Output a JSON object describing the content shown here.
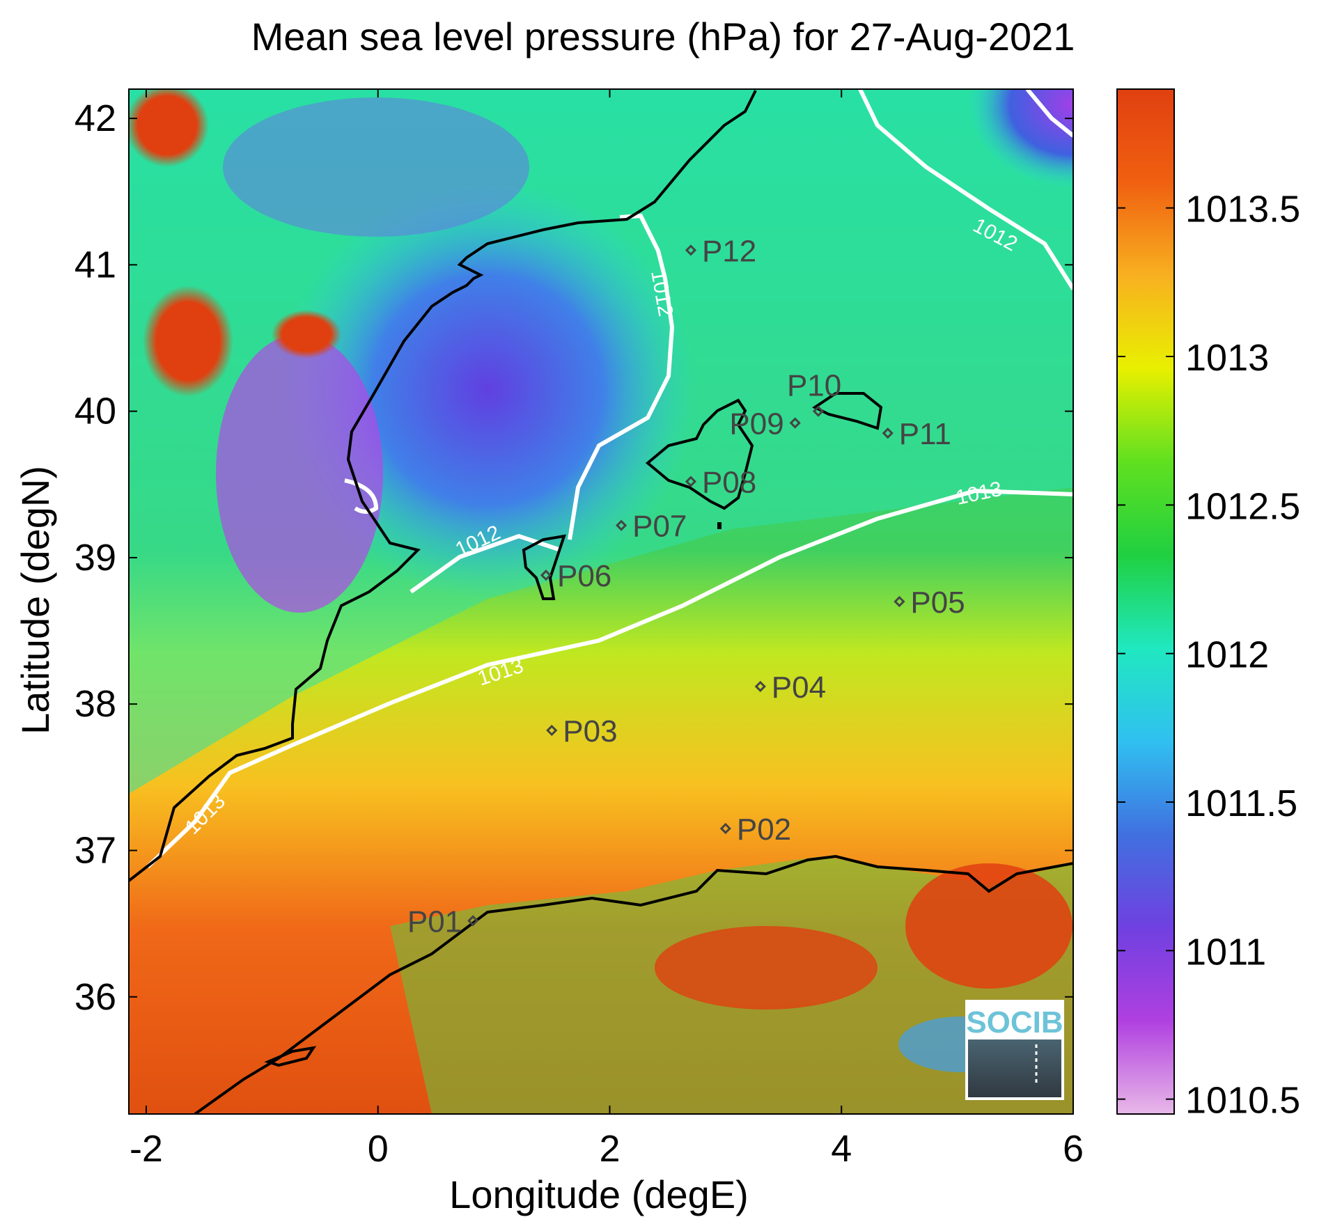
{
  "title": "Mean sea level pressure (hPa) for 27-Aug-2021",
  "xlabel": "Longitude (degE)",
  "ylabel": "Latitude (degN)",
  "x_ticks": [
    "-2",
    "0",
    "2",
    "4",
    "6"
  ],
  "y_ticks": [
    "42",
    "41",
    "40",
    "39",
    "38",
    "37",
    "36"
  ],
  "colorbar": {
    "ticks": [
      "1013.5",
      "1013",
      "1012.5",
      "1012",
      "1011.5",
      "1011",
      "1010.5"
    ],
    "colors": [
      "#e8b8e8",
      "#b040e0",
      "#7040e0",
      "#4070e0",
      "#30c0f0",
      "#20e8c0",
      "#20d040",
      "#60e020",
      "#e8f000",
      "#f8b020",
      "#f06010",
      "#e04010"
    ]
  },
  "contour_labels": [
    "1012",
    "1012",
    "1012",
    "1013",
    "1013",
    "1013"
  ],
  "stations": [
    {
      "id": "P01",
      "lon": 0.82,
      "lat": 36.52
    },
    {
      "id": "P02",
      "lon": 3.0,
      "lat": 37.15
    },
    {
      "id": "P03",
      "lon": 1.5,
      "lat": 37.82
    },
    {
      "id": "P04",
      "lon": 3.3,
      "lat": 38.12
    },
    {
      "id": "P05",
      "lon": 4.5,
      "lat": 38.7
    },
    {
      "id": "P06",
      "lon": 1.45,
      "lat": 38.88
    },
    {
      "id": "P07",
      "lon": 2.1,
      "lat": 39.22
    },
    {
      "id": "P08",
      "lon": 2.7,
      "lat": 39.52
    },
    {
      "id": "P09",
      "lon": 3.6,
      "lat": 39.92
    },
    {
      "id": "P10",
      "lon": 3.8,
      "lat": 40.0
    },
    {
      "id": "P11",
      "lon": 4.4,
      "lat": 39.85
    },
    {
      "id": "P12",
      "lon": 2.7,
      "lat": 41.1
    }
  ],
  "logo_text": "SOCIB"
}
